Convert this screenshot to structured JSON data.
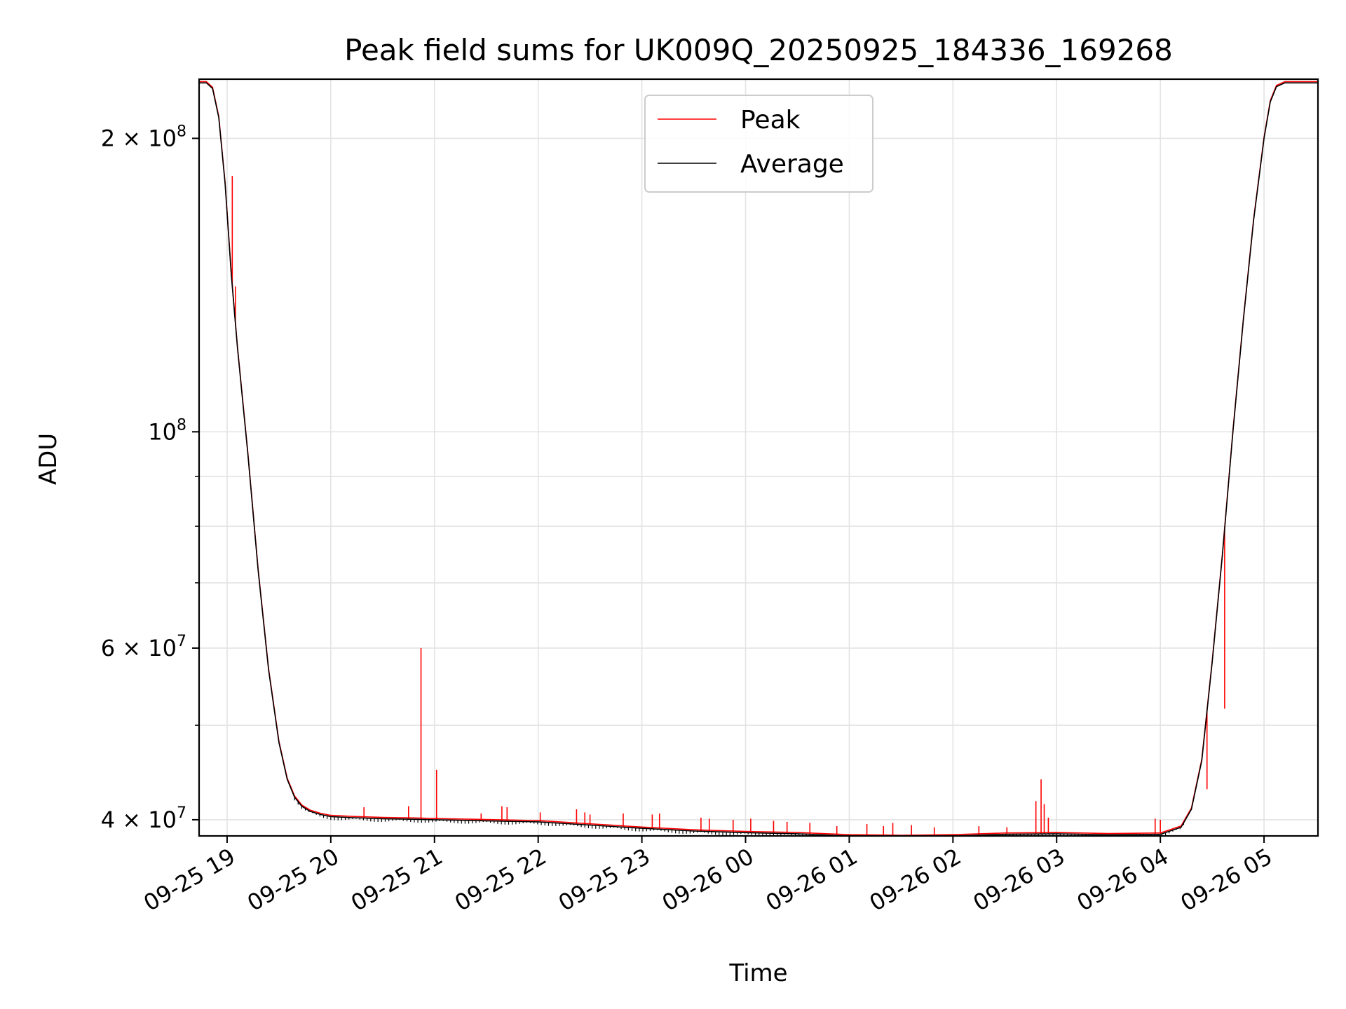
{
  "chart_data": {
    "type": "line",
    "title": "Peak field sums for UK009Q_20250925_184336_169268",
    "xlabel": "Time",
    "ylabel": "ADU",
    "yscale": "log",
    "ylim": [
      38500000,
      230000000
    ],
    "xlim": [
      18.73,
      29.52
    ],
    "grid": true,
    "legend_position": "upper-center",
    "x_unit": "hours since 09-25 00:00",
    "x_ticks": [
      {
        "value": 19,
        "label": "09-25 19"
      },
      {
        "value": 20,
        "label": "09-25 20"
      },
      {
        "value": 21,
        "label": "09-25 21"
      },
      {
        "value": 22,
        "label": "09-25 22"
      },
      {
        "value": 23,
        "label": "09-25 23"
      },
      {
        "value": 24,
        "label": "09-26 00"
      },
      {
        "value": 25,
        "label": "09-26 01"
      },
      {
        "value": 26,
        "label": "09-26 02"
      },
      {
        "value": 27,
        "label": "09-26 03"
      },
      {
        "value": 28,
        "label": "09-26 04"
      },
      {
        "value": 29,
        "label": "09-26 05"
      }
    ],
    "y_ticks_major": [
      {
        "value": 40000000,
        "base": "4 × 10",
        "exp": "7"
      },
      {
        "value": 60000000,
        "base": "6 × 10",
        "exp": "7"
      },
      {
        "value": 100000000,
        "base": "10",
        "exp": "8"
      },
      {
        "value": 200000000,
        "base": "2 × 10",
        "exp": "8"
      }
    ],
    "y_ticks_minor": [
      50000000,
      70000000,
      80000000,
      90000000
    ],
    "series": [
      {
        "name": "Average",
        "color": "#000000",
        "x": [
          18.73,
          18.8,
          18.86,
          18.92,
          18.98,
          19.04,
          19.1,
          19.2,
          19.3,
          19.4,
          19.5,
          19.58,
          19.65,
          19.72,
          19.8,
          19.9,
          20.0,
          20.2,
          20.5,
          20.8,
          21.0,
          21.5,
          22.0,
          22.5,
          23.0,
          23.5,
          24.0,
          24.5,
          25.0,
          25.5,
          26.0,
          26.5,
          27.0,
          27.5,
          28.0,
          28.2,
          28.3,
          28.4,
          28.5,
          28.6,
          28.7,
          28.8,
          28.9,
          29.0,
          29.06,
          29.12,
          29.2,
          29.3,
          29.52
        ],
        "y": [
          228000000,
          228000000,
          225000000,
          210000000,
          180000000,
          145000000,
          122000000,
          95000000,
          72000000,
          57000000,
          48000000,
          44000000,
          42200000,
          41300000,
          40800000,
          40500000,
          40300000,
          40200000,
          40100000,
          40050000,
          40000000,
          39900000,
          39800000,
          39500000,
          39200000,
          38950000,
          38800000,
          38700000,
          38500000,
          38450000,
          38500000,
          38650000,
          38700000,
          38600000,
          38650000,
          39300000,
          41000000,
          46000000,
          58000000,
          75000000,
          100000000,
          130000000,
          165000000,
          200000000,
          218000000,
          226000000,
          228000000,
          228000000,
          228000000
        ]
      },
      {
        "name": "Peak",
        "color": "#ff0000",
        "spikes": [
          {
            "x": 19.05,
            "y": 183000000
          },
          {
            "x": 19.08,
            "y": 141000000
          },
          {
            "x": 20.32,
            "y": 41200000
          },
          {
            "x": 20.75,
            "y": 41300000
          },
          {
            "x": 20.87,
            "y": 60000000
          },
          {
            "x": 21.02,
            "y": 45000000
          },
          {
            "x": 21.45,
            "y": 40600000
          },
          {
            "x": 21.65,
            "y": 41300000
          },
          {
            "x": 21.7,
            "y": 41200000
          },
          {
            "x": 22.02,
            "y": 40700000
          },
          {
            "x": 22.37,
            "y": 41000000
          },
          {
            "x": 22.45,
            "y": 40700000
          },
          {
            "x": 22.5,
            "y": 40500000
          },
          {
            "x": 22.82,
            "y": 40600000
          },
          {
            "x": 23.1,
            "y": 40500000
          },
          {
            "x": 23.17,
            "y": 40600000
          },
          {
            "x": 23.57,
            "y": 40200000
          },
          {
            "x": 23.65,
            "y": 40100000
          },
          {
            "x": 23.88,
            "y": 40000000
          },
          {
            "x": 24.05,
            "y": 40100000
          },
          {
            "x": 24.27,
            "y": 39900000
          },
          {
            "x": 24.4,
            "y": 39800000
          },
          {
            "x": 24.62,
            "y": 39700000
          },
          {
            "x": 24.88,
            "y": 39400000
          },
          {
            "x": 25.17,
            "y": 39600000
          },
          {
            "x": 25.33,
            "y": 39400000
          },
          {
            "x": 25.42,
            "y": 39700000
          },
          {
            "x": 25.6,
            "y": 39500000
          },
          {
            "x": 25.82,
            "y": 39300000
          },
          {
            "x": 26.25,
            "y": 39400000
          },
          {
            "x": 26.52,
            "y": 39300000
          },
          {
            "x": 26.8,
            "y": 41800000
          },
          {
            "x": 26.85,
            "y": 44000000
          },
          {
            "x": 26.88,
            "y": 41500000
          },
          {
            "x": 26.92,
            "y": 40200000
          },
          {
            "x": 27.95,
            "y": 40100000
          },
          {
            "x": 28.0,
            "y": 40000000
          },
          {
            "x": 28.45,
            "y": 43000000
          },
          {
            "x": 28.62,
            "y": 52000000
          }
        ]
      }
    ]
  }
}
